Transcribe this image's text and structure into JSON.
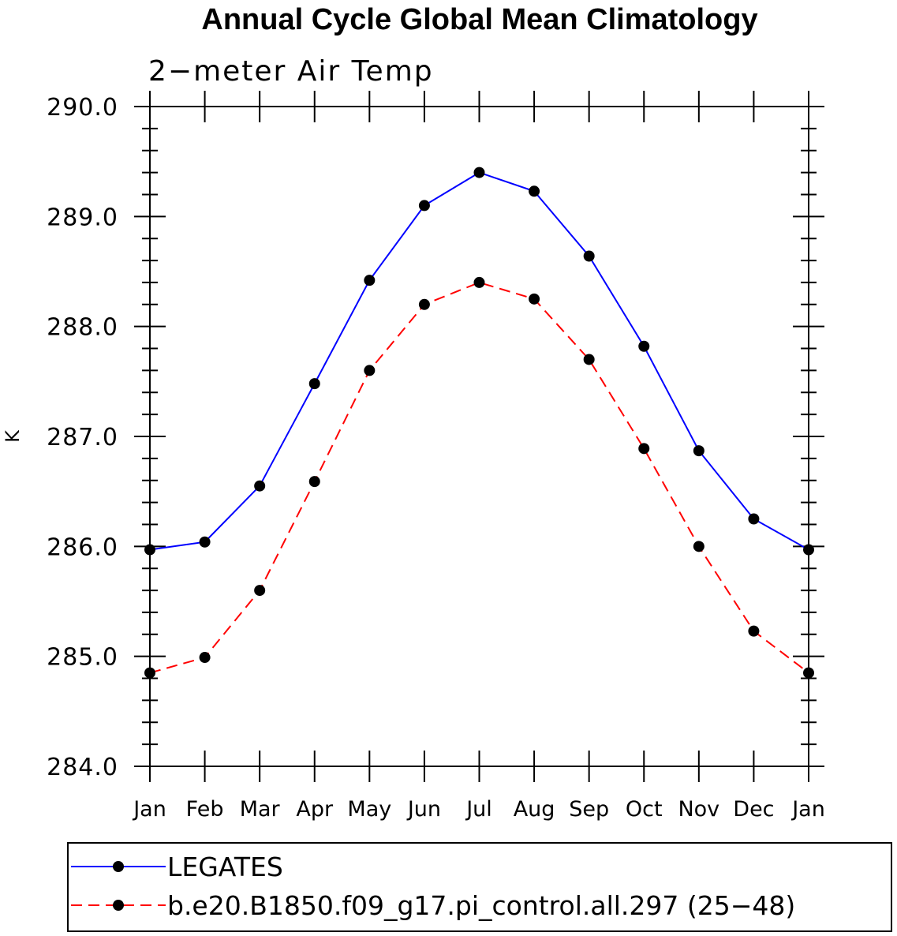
{
  "chart_data": {
    "type": "line",
    "title": "Annual Cycle Global Mean Climatology",
    "subtitle": "2−meter Air Temp",
    "xlabel": "",
    "ylabel": "K",
    "categories": [
      "Jan",
      "Feb",
      "Mar",
      "Apr",
      "May",
      "Jun",
      "Jul",
      "Aug",
      "Sep",
      "Oct",
      "Nov",
      "Dec",
      "Jan"
    ],
    "ylim": [
      284.0,
      290.0
    ],
    "yticks": [
      "284.0",
      "285.0",
      "286.0",
      "287.0",
      "288.0",
      "289.0",
      "290.0"
    ],
    "series": [
      {
        "name": "LEGATES",
        "color": "#0000ff",
        "dash": "solid",
        "values": [
          285.97,
          286.04,
          286.55,
          287.48,
          288.42,
          289.1,
          289.4,
          289.23,
          288.64,
          287.82,
          286.87,
          286.25,
          285.97
        ]
      },
      {
        "name": "b.e20.B1850.f09_g17.pi_control.all.297 (25−48)",
        "color": "#ff0000",
        "dash": "dashed",
        "values": [
          284.85,
          284.99,
          285.6,
          286.59,
          287.6,
          288.2,
          288.4,
          288.25,
          287.7,
          286.89,
          286.0,
          285.23,
          284.85
        ]
      }
    ],
    "grid": false,
    "legend_position": "bottom"
  }
}
